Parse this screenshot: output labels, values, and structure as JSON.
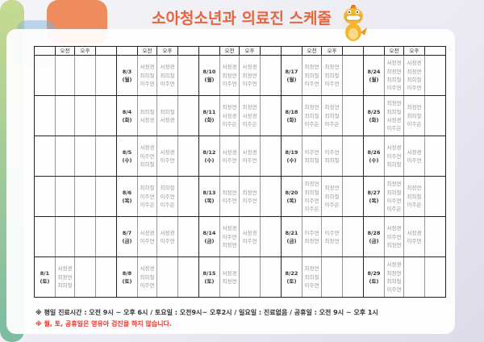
{
  "title": "소아청소년과 의료진 스케줄",
  "header": {
    "am": "오전",
    "pm": "오후"
  },
  "rows": [
    [
      {
        "date": "",
        "day": "",
        "am": [],
        "pm": []
      },
      {
        "date": "8/3",
        "day": "(월)",
        "am": [
          "서정경",
          "최희철",
          "이주연"
        ],
        "pm": [
          "서정경",
          "최희철",
          "이주연"
        ]
      },
      {
        "date": "8/10",
        "day": "(월)",
        "am": [
          "서정경",
          "최정연",
          "이주연"
        ],
        "pm": [
          "서정경",
          "최정연",
          "이주연"
        ]
      },
      {
        "date": "8/17",
        "day": "(월)",
        "am": [
          "최정연",
          "최희철",
          "이주연"
        ],
        "pm": [
          "최정연",
          "최희철",
          "이주연"
        ]
      },
      {
        "date": "8/24",
        "day": "(월)",
        "am": [
          "서정경",
          "최정연",
          "최희철",
          "이주연"
        ],
        "pm": [
          "서정경",
          "최정연",
          "최희철",
          "이주연"
        ]
      }
    ],
    [
      {
        "date": "",
        "day": "",
        "am": [],
        "pm": []
      },
      {
        "date": "8/4",
        "day": "(화)",
        "am": [
          "최희철",
          "서정경"
        ],
        "pm": [
          "최희철",
          "서정경"
        ]
      },
      {
        "date": "8/11",
        "day": "(화)",
        "am": [
          "최정연",
          "서정경",
          "이주은"
        ],
        "pm": [
          "최정연",
          "서정경",
          "이주은"
        ]
      },
      {
        "date": "8/18",
        "day": "(화)",
        "am": [
          "최정연",
          "최희철",
          "이주은"
        ],
        "pm": [
          "최정연",
          "최희철",
          "이주은"
        ]
      },
      {
        "date": "8/25",
        "day": "(화)",
        "am": [
          "최정연",
          "최희철",
          "서정경",
          "이주은"
        ],
        "pm": [
          "최정연",
          "최희철",
          "이주은"
        ]
      }
    ],
    [
      {
        "date": "",
        "day": "",
        "am": [],
        "pm": []
      },
      {
        "date": "8/5",
        "day": "(수)",
        "am": [
          "서정경",
          "이주연",
          "최희철"
        ],
        "pm": [
          "서정경",
          "이주연"
        ]
      },
      {
        "date": "8/12",
        "day": "(수)",
        "am": [
          "서정경",
          "이주연"
        ],
        "pm": [
          "서정경",
          "이주연"
        ]
      },
      {
        "date": "8/19",
        "day": "(수)",
        "am": [
          "이주연",
          "최희철"
        ],
        "pm": [
          "이주연",
          "최희철"
        ]
      },
      {
        "date": "8/26",
        "day": "(수)",
        "am": [
          "서정경",
          "이주연",
          "최희철"
        ],
        "pm": [
          "서정경",
          "이주연"
        ]
      }
    ],
    [
      {
        "date": "",
        "day": "",
        "am": [],
        "pm": []
      },
      {
        "date": "8/6",
        "day": "(목)",
        "am": [
          "최희철",
          "이주연",
          "이주은"
        ],
        "pm": [
          "최희철",
          "이주연",
          "이주은"
        ]
      },
      {
        "date": "8/13",
        "day": "(목)",
        "am": [
          "최정연",
          "이주연"
        ],
        "pm": [
          "최정연",
          "이주연"
        ]
      },
      {
        "date": "8/20",
        "day": "(목)",
        "am": [
          "최정연",
          "최희철",
          "이주연",
          "이주은"
        ],
        "pm": [
          "최정연",
          "최희철",
          "이주은"
        ]
      },
      {
        "date": "8/27",
        "day": "(목)",
        "am": [
          "최정연",
          "최희철",
          "이주연",
          "이주은"
        ],
        "pm": [
          "최정연",
          "최희철",
          "이주은"
        ]
      }
    ],
    [
      {
        "date": "",
        "day": "",
        "am": [],
        "pm": []
      },
      {
        "date": "8/7",
        "day": "(금)",
        "am": [
          "서정경",
          "이주연"
        ],
        "pm": [
          "서정경",
          "이주연"
        ]
      },
      {
        "date": "8/14",
        "day": "(금)",
        "am": [
          "서정경",
          "이주연",
          "최정연"
        ],
        "pm": [
          "서정경",
          "이주연"
        ]
      },
      {
        "date": "8/21",
        "day": "(금)",
        "am": [
          "이주연",
          "최정연"
        ],
        "pm": [
          "이주연",
          "최정연"
        ]
      },
      {
        "date": "8/28",
        "day": "(금)",
        "am": [
          "서정경",
          "이주연",
          "최정연"
        ],
        "pm": [
          "서정경",
          "이주연"
        ]
      }
    ],
    [
      {
        "date": "8/1",
        "day": "(토)",
        "am": [
          "서정경",
          "최정연",
          "최희철"
        ],
        "pm": []
      },
      {
        "date": "8/8",
        "day": "(토)",
        "am": [
          "서정경",
          "최희철",
          "이주연"
        ],
        "pm": []
      },
      {
        "date": "8/15",
        "day": "(토)",
        "am": [
          "서정경",
          "최정연"
        ],
        "pm": []
      },
      {
        "date": "8/22",
        "day": "(토)",
        "am": [
          "최정연",
          "최희철",
          "이주연"
        ],
        "pm": []
      },
      {
        "date": "8/29",
        "day": "(토)",
        "am": [
          "서정경",
          "최정연",
          "최희철",
          "이주연"
        ],
        "pm": []
      }
    ]
  ],
  "notes": {
    "hours": "※ 평일 진료시간 : 오전 9시 ~ 오후 6시 /  토요일 : 오전9시~ 오후2시 / 일요일 : 진료없음 / 공휴일 : 오전 9시 ~ 오후 1시",
    "warning": "※ 월, 토, 공휴일은 영유아 검진을 하지 않습니다."
  },
  "colors": {
    "title": "#e8643c",
    "warning": "#e8332a"
  }
}
